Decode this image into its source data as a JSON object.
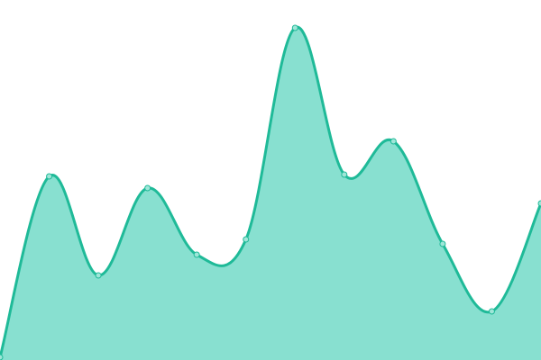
{
  "chart_data": {
    "type": "area",
    "x": [
      0,
      1,
      2,
      3,
      4,
      5,
      6,
      7,
      8,
      9,
      10,
      11
    ],
    "values": [
      3,
      204,
      94,
      191,
      117,
      134,
      369,
      206,
      243,
      129,
      54,
      174
    ],
    "ylim": [
      0,
      400
    ],
    "grid": false,
    "legend": "none",
    "colors": {
      "line": "#1fba98",
      "fill": "#88e0d0",
      "point_fill": "#9fe6d8",
      "point_stroke": "#1fba98"
    }
  }
}
